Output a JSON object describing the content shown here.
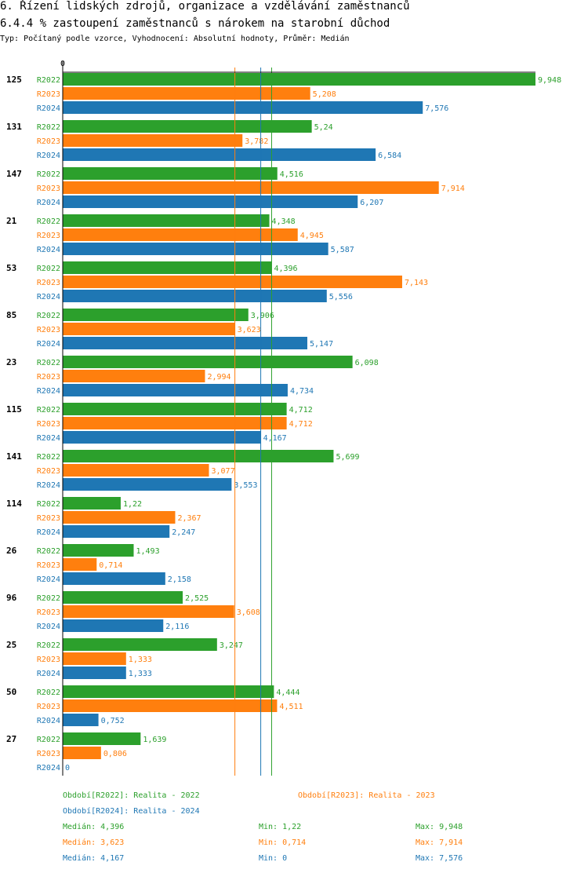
{
  "header": {
    "title_line1": "6. Řízení lidských zdrojů, organizace a vzdělávání zaměstnanců",
    "title_line2": "6.4.4 % zastoupení zaměstnanců s nárokem na starobní důchod",
    "subtitle": "Typ: Počítaný podle vzorce, Vyhodnocení: Absolutní hodnoty, Průměr: Medián"
  },
  "colors": {
    "R2022": "#2ca02c",
    "R2023": "#ff7f0e",
    "R2024": "#1f77b4"
  },
  "chart_data": {
    "type": "bar",
    "orientation": "horizontal",
    "title": "6.4.4 % zastoupení zaměstnanců s nárokem na starobní důchod",
    "axis_zero_label": "0",
    "xlim": [
      0,
      9.948
    ],
    "categories": [
      "125",
      "131",
      "147",
      "21",
      "53",
      "85",
      "23",
      "115",
      "141",
      "114",
      "26",
      "96",
      "25",
      "50",
      "27"
    ],
    "series": [
      {
        "name": "R2022",
        "values": [
          9.948,
          5.24,
          4.516,
          4.348,
          4.396,
          3.906,
          6.098,
          4.712,
          5.699,
          1.22,
          1.493,
          2.525,
          3.247,
          4.444,
          1.639
        ],
        "labels": [
          "9,948",
          "5,24",
          "4,516",
          "4,348",
          "4,396",
          "3,906",
          "6,098",
          "4,712",
          "5,699",
          "1,22",
          "1,493",
          "2,525",
          "3,247",
          "4,444",
          "1,639"
        ]
      },
      {
        "name": "R2023",
        "values": [
          5.208,
          3.782,
          7.914,
          4.945,
          7.143,
          3.623,
          2.994,
          4.712,
          3.077,
          2.367,
          0.714,
          3.608,
          1.333,
          4.511,
          0.806
        ],
        "labels": [
          "5,208",
          "3,782",
          "7,914",
          "4,945",
          "7,143",
          "3,623",
          "2,994",
          "4,712",
          "3,077",
          "2,367",
          "0,714",
          "3,608",
          "1,333",
          "4,511",
          "0,806"
        ]
      },
      {
        "name": "R2024",
        "values": [
          7.576,
          6.584,
          6.207,
          5.587,
          5.556,
          5.147,
          4.734,
          4.167,
          3.553,
          2.247,
          2.158,
          2.116,
          1.333,
          0.752,
          0
        ],
        "labels": [
          "7,576",
          "6,584",
          "6,207",
          "5,587",
          "5,556",
          "5,147",
          "4,734",
          "4,167",
          "3,553",
          "2,247",
          "2,158",
          "2,116",
          "1,333",
          "0,752",
          "0"
        ]
      }
    ],
    "median_lines": {
      "R2022": 4.396,
      "R2023": 3.623,
      "R2024": 4.167
    }
  },
  "legend": {
    "r2022": "Období[R2022]: Realita - 2022",
    "r2023": "Období[R2023]: Realita - 2023",
    "r2024": "Období[R2024]: Realita - 2024"
  },
  "stats": [
    {
      "median": "Medián: 4,396",
      "min": "Min: 1,22",
      "max": "Max: 9,948"
    },
    {
      "median": "Medián: 3,623",
      "min": "Min: 0,714",
      "max": "Max: 7,914"
    },
    {
      "median": "Medián: 4,167",
      "min": "Min: 0",
      "max": "Max: 7,576"
    }
  ]
}
